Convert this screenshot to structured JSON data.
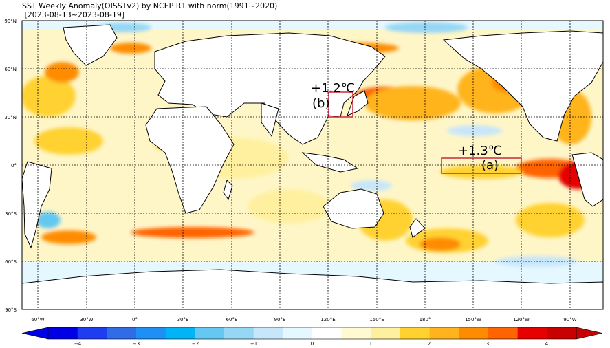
{
  "title_line1": "SST Weekly Anomaly(OISSTv2) by NCEP R1 with norm(1991~2020)",
  "title_line2": " [2023-08-13~2023-08-19]",
  "lat_labels": [
    "90°N",
    "60°N",
    "30°N",
    "0°",
    "30°S",
    "60°S",
    "90°S"
  ],
  "lon_labels": [
    "60°W",
    "30°W",
    "0°",
    "30°E",
    "60°E",
    "90°E",
    "120°E",
    "150°E",
    "180°",
    "150°W",
    "120°W",
    "90°W"
  ],
  "colorbar": {
    "ticks": [
      "−4",
      "−3",
      "−2",
      "−1",
      "0",
      "1",
      "2",
      "3",
      "4"
    ],
    "colors": [
      "#0000e6",
      "#1e3cf0",
      "#2f6ce6",
      "#1e8ff5",
      "#00b4f5",
      "#64c8f0",
      "#96d7f5",
      "#c8e6fa",
      "#e6f8ff",
      "#ffffff",
      "#fffad2",
      "#fff0a0",
      "#ffd230",
      "#ffb41e",
      "#ff8c00",
      "#ff6400",
      "#e60000",
      "#c80000"
    ]
  },
  "annotations": {
    "a_value": "+1.3℃",
    "a_label": "(a)",
    "b_value": "+1.2℃",
    "b_label": "(b)"
  },
  "colors": {
    "box": "#c8283c",
    "land": "#ffffff",
    "ocean_base": "#fff6c8"
  }
}
